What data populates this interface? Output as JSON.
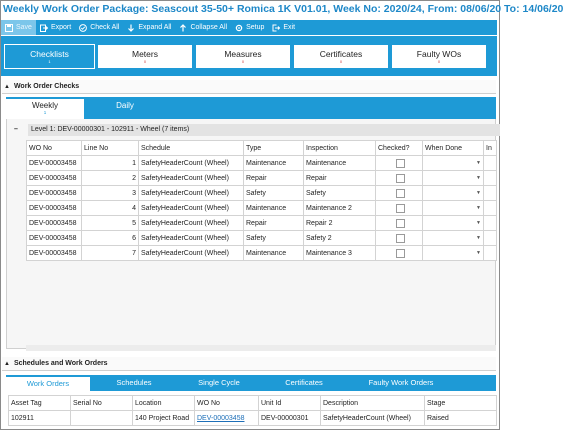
{
  "window": {
    "title": "Weekly Work Order Package: Seascout 35-50+ Romica 1K V01.01, Week No: 2020/24, From: 08/06/20 To: 14/06/20"
  },
  "toolbar": {
    "save": "Save",
    "export": "Export",
    "check_all": "Check All",
    "expand_all": "Expand All",
    "collapse_all": "Collapse All",
    "setup": "Setup",
    "exit": "Exit"
  },
  "main_tabs": [
    {
      "label": "Checklists",
      "sub": "1",
      "active": true
    },
    {
      "label": "Meters",
      "sub": "0",
      "active": false
    },
    {
      "label": "Measures",
      "sub": "0",
      "active": false
    },
    {
      "label": "Certificates",
      "sub": "0",
      "active": false
    },
    {
      "label": "Faulty WOs",
      "sub": "0",
      "active": false
    }
  ],
  "checks_section": {
    "title": "Work Order Checks",
    "tabs": [
      {
        "label": "Weekly",
        "sub": "1",
        "active": true
      },
      {
        "label": "Daily",
        "sub": "",
        "active": false
      }
    ],
    "level_label": "Level 1: DEV-00000301 - 102911 - Wheel (7 items)",
    "columns": [
      "WO No",
      "Line No",
      "Schedule",
      "Type",
      "Inspection",
      "Checked?",
      "When Done",
      "In"
    ],
    "rows": [
      {
        "wo": "DEV-00003458",
        "line": "1",
        "schedule": "SafetyHeaderCount (Wheel)",
        "type": "Maintenance",
        "inspection": "Maintenance"
      },
      {
        "wo": "DEV-00003458",
        "line": "2",
        "schedule": "SafetyHeaderCount (Wheel)",
        "type": "Repair",
        "inspection": "Repair"
      },
      {
        "wo": "DEV-00003458",
        "line": "3",
        "schedule": "SafetyHeaderCount (Wheel)",
        "type": "Safety",
        "inspection": "Safety"
      },
      {
        "wo": "DEV-00003458",
        "line": "4",
        "schedule": "SafetyHeaderCount (Wheel)",
        "type": "Maintenance",
        "inspection": "Maintenance 2"
      },
      {
        "wo": "DEV-00003458",
        "line": "5",
        "schedule": "SafetyHeaderCount (Wheel)",
        "type": "Repair",
        "inspection": "Repair 2"
      },
      {
        "wo": "DEV-00003458",
        "line": "6",
        "schedule": "SafetyHeaderCount (Wheel)",
        "type": "Safety",
        "inspection": "Safety 2"
      },
      {
        "wo": "DEV-00003458",
        "line": "7",
        "schedule": "SafetyHeaderCount (Wheel)",
        "type": "Maintenance",
        "inspection": "Maintenance 3"
      }
    ]
  },
  "schedules_section": {
    "title": "Schedules and Work Orders",
    "tabs": [
      {
        "label": "Work Orders",
        "active": true
      },
      {
        "label": "Schedules",
        "active": false
      },
      {
        "label": "Single Cycle",
        "active": false
      },
      {
        "label": "Certificates",
        "active": false
      },
      {
        "label": "Faulty Work Orders",
        "active": false
      }
    ],
    "columns": [
      "Asset Tag",
      "Serial No",
      "Location",
      "WO No",
      "Unit Id",
      "Description",
      "Stage"
    ],
    "rows": [
      {
        "asset_tag": "102911",
        "serial": "",
        "location": "140 Project Road",
        "wo": "DEV-00003458",
        "unit": "DEV-00000301",
        "description": "SafetyHeaderCount (Wheel)",
        "stage": "Raised"
      }
    ]
  },
  "colors": {
    "accent": "#1e9ad6",
    "title": "#1e88c8"
  }
}
